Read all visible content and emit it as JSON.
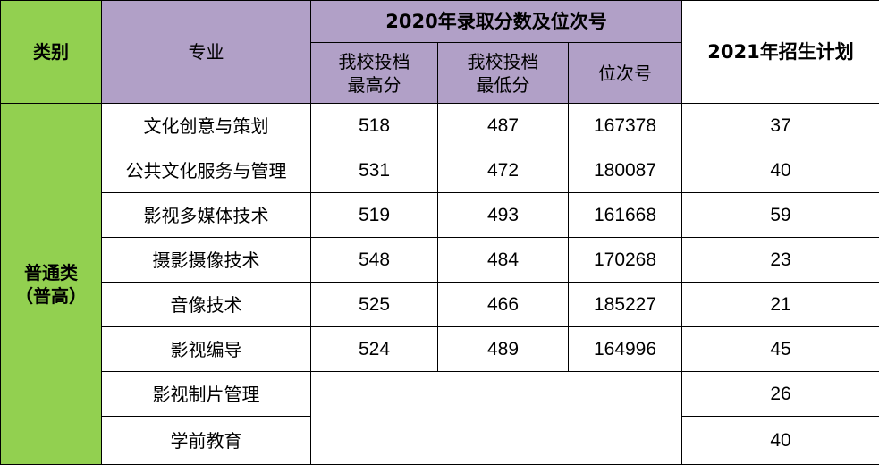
{
  "colors": {
    "category_bg": "#92d050",
    "header_bg": "#b1a0c7"
  },
  "header": {
    "category": "类别",
    "major": "专业",
    "group_2020": "2020年录取分数及位次号",
    "max_score": [
      "我校投档",
      "最高分"
    ],
    "min_score": [
      "我校投档",
      "最低分"
    ],
    "rank": "位次号",
    "plan_2021": "2021年招生计划"
  },
  "category": [
    "普通类",
    "（普高）"
  ],
  "rows": [
    {
      "major": "文化创意与策划",
      "max": "518",
      "min": "487",
      "rank": "167378",
      "plan": "37"
    },
    {
      "major": "公共文化服务与管理",
      "max": "531",
      "min": "472",
      "rank": "180087",
      "plan": "40"
    },
    {
      "major": "影视多媒体技术",
      "max": "519",
      "min": "493",
      "rank": "161668",
      "plan": "59"
    },
    {
      "major": "摄影摄像技术",
      "max": "548",
      "min": "484",
      "rank": "170268",
      "plan": "23"
    },
    {
      "major": "音像技术",
      "max": "525",
      "min": "466",
      "rank": "185227",
      "plan": "21"
    },
    {
      "major": "影视编导",
      "max": "524",
      "min": "489",
      "rank": "164996",
      "plan": "45"
    },
    {
      "major": "影视制片管理",
      "plan": "26"
    },
    {
      "major": "学前教育",
      "plan": "40"
    }
  ]
}
